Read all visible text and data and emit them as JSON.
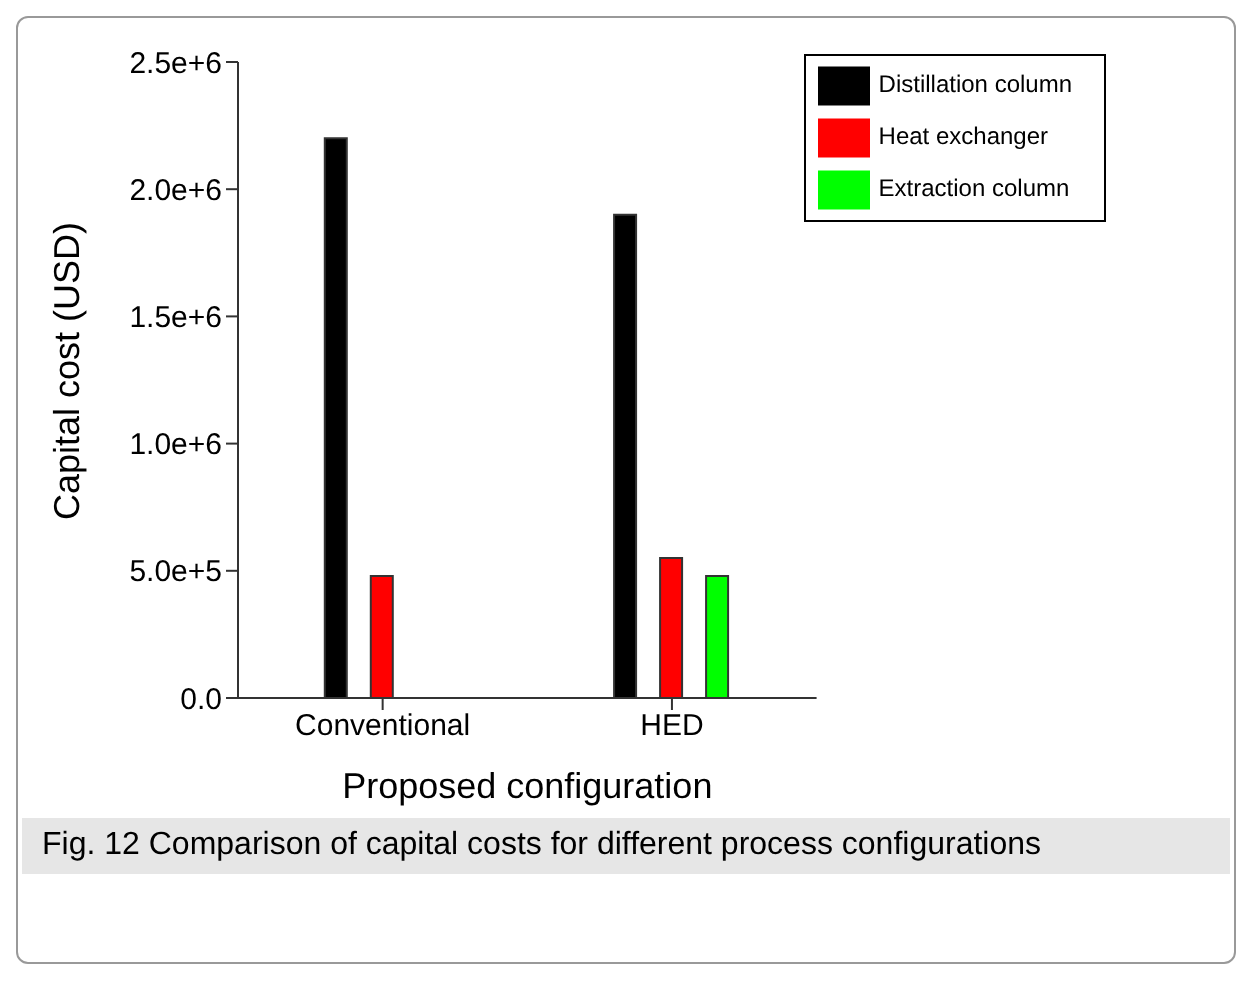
{
  "chart_data": {
    "type": "bar",
    "xlabel": "Proposed configuration",
    "ylabel": "Capital cost (USD)",
    "categories": [
      "Conventional",
      "HED"
    ],
    "series": [
      {
        "name": "Distillation column",
        "color": "#000000",
        "values": [
          2200000,
          1900000
        ]
      },
      {
        "name": "Heat exchanger",
        "color": "#ff0000",
        "values": [
          480000,
          550000
        ]
      },
      {
        "name": "Extraction column",
        "color": "#00ff00",
        "values": [
          null,
          480000
        ]
      }
    ],
    "ylim": [
      0,
      2500000
    ],
    "yticks": [
      {
        "value": 0,
        "label": "0.0"
      },
      {
        "value": 500000,
        "label": "5.0e+5"
      },
      {
        "value": 1000000,
        "label": "1.0e+6"
      },
      {
        "value": 1500000,
        "label": "1.5e+6"
      },
      {
        "value": 2000000,
        "label": "2.0e+6"
      },
      {
        "value": 2500000,
        "label": "2.5e+6"
      }
    ],
    "legend": "top right",
    "grid": false,
    "annotations": [
      "Fig. 12 Comparison of capital costs for different process configurations"
    ]
  }
}
